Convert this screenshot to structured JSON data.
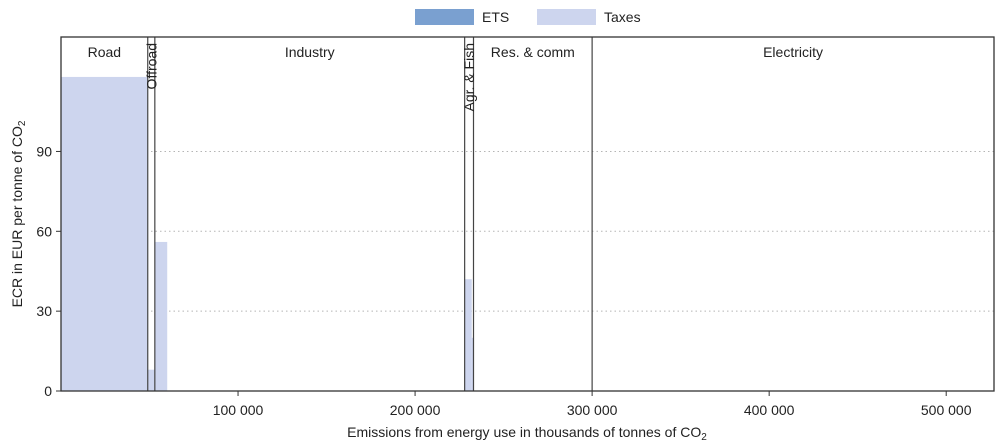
{
  "chart_data": {
    "type": "bar",
    "xlabel": "Emissions from energy use in thousands of tonnes of CO",
    "xlabel_sub": "2",
    "ylabel": "ECR in EUR per tonne of CO",
    "ylabel_sub": "2",
    "xlim": [
      0,
      527000
    ],
    "ylim": [
      0,
      133
    ],
    "xticks": [
      100000,
      200000,
      300000,
      400000,
      500000
    ],
    "xtick_labels": [
      "100 000",
      "200 000",
      "300 000",
      "400 000",
      "500 000"
    ],
    "yticks": [
      0,
      30,
      60,
      90
    ],
    "ytick_labels": [
      "0",
      "30",
      "60",
      "90"
    ],
    "grid": "horizontal dotted",
    "legend": {
      "position": "top-center",
      "items": [
        {
          "name": "ETS",
          "color": "#7aa0d0"
        },
        {
          "name": "Taxes",
          "color": "#cdd5ee"
        }
      ]
    },
    "sectors": [
      {
        "name": "Road",
        "start": 0,
        "end": 49000,
        "orientation": "horizontal"
      },
      {
        "name": "Offroad",
        "start": 49000,
        "end": 53000,
        "orientation": "vertical"
      },
      {
        "name": "Industry",
        "start": 53000,
        "end": 228000,
        "orientation": "horizontal"
      },
      {
        "name": "Agr. & Fish",
        "start": 228000,
        "end": 233000,
        "orientation": "vertical"
      },
      {
        "name": "Res. & comm",
        "start": 233000,
        "end": 300000,
        "orientation": "horizontal"
      },
      {
        "name": "Electricity",
        "start": 300000,
        "end": 527000,
        "orientation": "horizontal"
      }
    ],
    "bars": [
      {
        "series": "Taxes",
        "x0": 0,
        "x1": 49000,
        "y": 118
      },
      {
        "series": "Taxes",
        "x0": 49000,
        "x1": 53000,
        "y": 8
      },
      {
        "series": "Taxes",
        "x0": 53000,
        "x1": 60000,
        "y": 56
      },
      {
        "series": "Taxes",
        "x0": 228000,
        "x1": 232000,
        "y": 42
      },
      {
        "series": "Taxes",
        "x0": 232000,
        "x1": 233000,
        "y": 20
      }
    ]
  }
}
